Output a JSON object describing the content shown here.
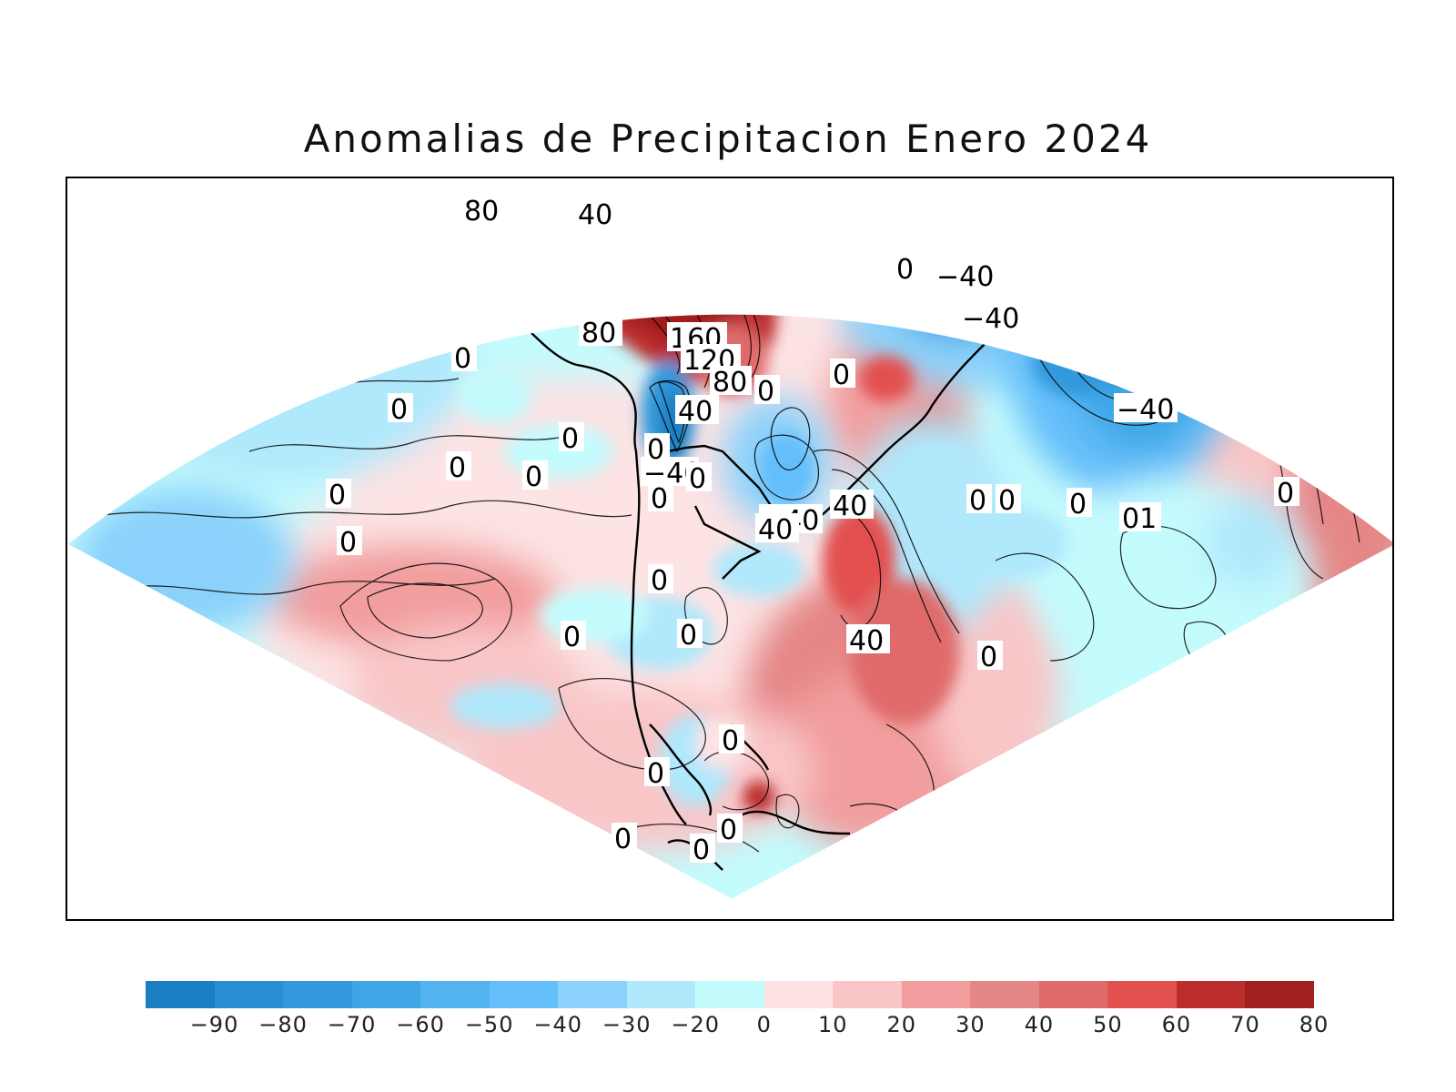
{
  "title": "Anomalias de Precipitacion Enero 2024",
  "colorbar": {
    "bins": [
      "#1a7fc2",
      "#2a8ed2",
      "#3299dc",
      "#3ea6e6",
      "#52b3f0",
      "#64befa",
      "#8ad2fb",
      "#b0e8fc",
      "#c4fbfd",
      "#fde3e4",
      "#f9c6c8",
      "#f29e9e",
      "#e68787",
      "#e06a6a",
      "#e35050",
      "#bb2d2d",
      "#a31f1f"
    ],
    "ticks": [
      "−90",
      "−80",
      "−70",
      "−60",
      "−50",
      "−40",
      "−30",
      "−20",
      "0",
      "10",
      "20",
      "30",
      "40",
      "50",
      "60",
      "70",
      "80"
    ]
  },
  "contour_labels": [
    "80",
    "40",
    "80",
    "160",
    "120",
    "80",
    "0",
    "40",
    "0",
    "0",
    "0",
    "0",
    "0",
    "0",
    "−40",
    "0",
    "0",
    "0",
    "−40",
    "−40",
    "0",
    "−40",
    "0",
    "40",
    "−40",
    "40",
    "0",
    "0",
    "0",
    "01",
    "0",
    "0",
    "40",
    "0",
    "0",
    "0",
    "0",
    "0",
    "0",
    "0",
    "0",
    "0",
    "0"
  ]
}
